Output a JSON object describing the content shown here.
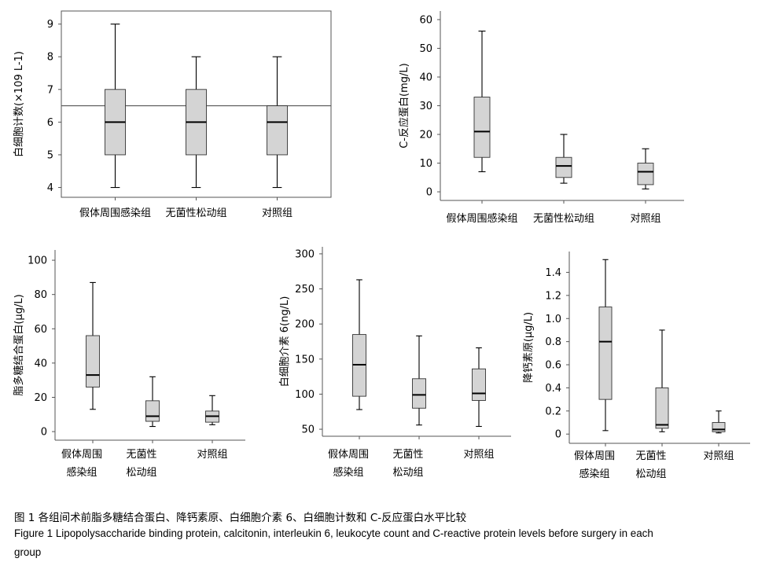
{
  "chart_data": [
    {
      "type": "box",
      "ylabel": "白细胞计数(×109 L-1)",
      "ylim": [
        3.7,
        9.4
      ],
      "yticks": [
        4,
        5,
        6,
        7,
        8,
        9
      ],
      "categories": [
        [
          "假体周围感染组"
        ],
        [
          "无菌性松动组"
        ],
        [
          "对照组"
        ]
      ],
      "boxes": [
        {
          "min": 4,
          "q1": 5,
          "median": 6,
          "q3": 7,
          "max": 9
        },
        {
          "min": 4,
          "q1": 5,
          "median": 6,
          "q3": 7,
          "max": 8
        },
        {
          "min": 4,
          "q1": 5,
          "median": 6,
          "q3": 6.5,
          "max": 8
        }
      ],
      "reference_line": 6.5
    },
    {
      "type": "box",
      "ylabel": "C-反应蛋白(mg/L)",
      "ylim": [
        -3,
        63
      ],
      "yticks": [
        0,
        10,
        20,
        30,
        40,
        50,
        60
      ],
      "categories": [
        [
          "假体周围感染组"
        ],
        [
          "无菌性松动组"
        ],
        [
          "对照组"
        ]
      ],
      "boxes": [
        {
          "min": 7,
          "q1": 12,
          "median": 21,
          "q3": 33,
          "max": 56
        },
        {
          "min": 3,
          "q1": 5,
          "median": 9,
          "q3": 12,
          "max": 20
        },
        {
          "min": 1,
          "q1": 2.5,
          "median": 7,
          "q3": 10,
          "max": 15
        }
      ]
    },
    {
      "type": "box",
      "ylabel": "脂多糖结合蛋白(μg/L)",
      "ylim": [
        -5,
        106
      ],
      "yticks": [
        0,
        20,
        40,
        60,
        80,
        100
      ],
      "categories": [
        [
          "假体周围",
          "感染组"
        ],
        [
          "无菌性",
          "松动组"
        ],
        [
          "对照组"
        ]
      ],
      "boxes": [
        {
          "min": 13,
          "q1": 26,
          "median": 33,
          "q3": 56,
          "max": 87
        },
        {
          "min": 3,
          "q1": 6,
          "median": 9,
          "q3": 18,
          "max": 32
        },
        {
          "min": 4,
          "q1": 5.5,
          "median": 9,
          "q3": 12,
          "max": 21
        }
      ]
    },
    {
      "type": "box",
      "ylabel": "白细胞介素 6(ng/L)",
      "ylim": [
        40,
        310
      ],
      "yticks": [
        50,
        100,
        150,
        200,
        250,
        300
      ],
      "categories": [
        [
          "假体周围",
          "感染组"
        ],
        [
          "无菌性",
          "松动组"
        ],
        [
          "对照组"
        ]
      ],
      "boxes": [
        {
          "min": 78,
          "q1": 97,
          "median": 142,
          "q3": 185,
          "max": 263
        },
        {
          "min": 56,
          "q1": 80,
          "median": 99,
          "q3": 122,
          "max": 183
        },
        {
          "min": 54,
          "q1": 91,
          "median": 101,
          "q3": 136,
          "max": 166
        }
      ]
    },
    {
      "type": "box",
      "ylabel": "降钙素原(μg/L)",
      "ylim": [
        -0.08,
        1.58
      ],
      "yticks": [
        "0",
        "0.2",
        "0.4",
        "0.6",
        "0.8",
        "1.0",
        "1.2",
        "1.4"
      ],
      "categories": [
        [
          "假体周围",
          "感染组"
        ],
        [
          "无菌性",
          "松动组"
        ],
        [
          "对照组"
        ]
      ],
      "boxes": [
        {
          "min": 0.03,
          "q1": 0.3,
          "median": 0.8,
          "q3": 1.1,
          "max": 1.51
        },
        {
          "min": 0.02,
          "q1": 0.05,
          "median": 0.08,
          "q3": 0.4,
          "max": 0.9
        },
        {
          "min": 0.01,
          "q1": 0.02,
          "median": 0.04,
          "q3": 0.1,
          "max": 0.2
        }
      ]
    }
  ],
  "caption": {
    "zh": "图 1   各组间术前脂多糖结合蛋白、降钙素原、白细胞介素 6、白细胞计数和 C-反应蛋白水平比较",
    "en_line1": "Figure 1   Lipopolysaccharide binding protein, calcitonin, interleukin 6, leukocyte count and C-reactive protein levels before surgery in each",
    "en_line2": "group"
  },
  "colors": {
    "box_fill": "#d4d4d4",
    "stroke": "#000000",
    "axis": "#555555",
    "reference_line": "#555555"
  }
}
